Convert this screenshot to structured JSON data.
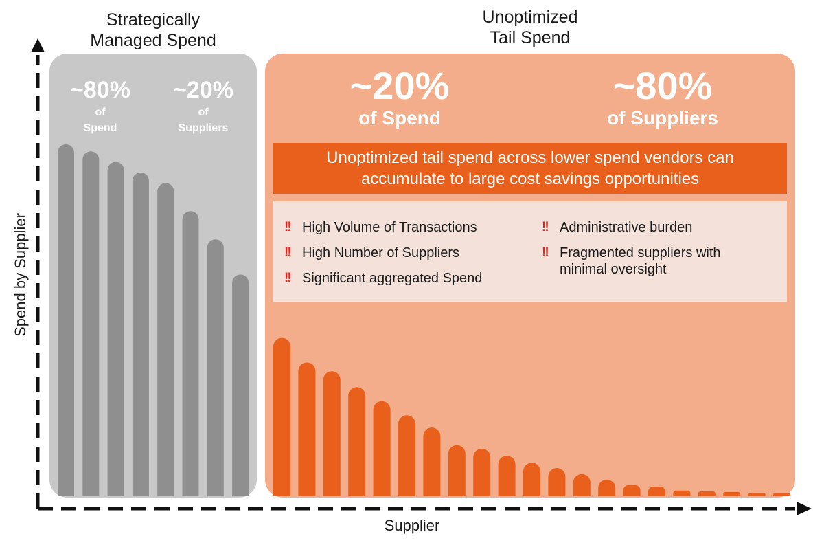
{
  "left_section": {
    "title": "Strategically\nManaged Spend",
    "stats": [
      {
        "pct": "~80%",
        "label": "of\nSpend"
      },
      {
        "pct": "~20%",
        "label": "of\nSuppliers"
      }
    ]
  },
  "right_section": {
    "title": "Unoptimized\nTail Spend",
    "stats": [
      {
        "pct": "~20%",
        "label": "of Spend"
      },
      {
        "pct": "~80%",
        "label": "of Suppliers"
      }
    ],
    "banner": "Unoptimized tail spend across lower spend vendors can\naccumulate to large cost savings opportunities",
    "issues_left": [
      "High Volume of Transactions",
      "High Number of Suppliers",
      "Significant aggregated Spend"
    ],
    "issues_right": [
      "Administrative burden",
      "Fragmented suppliers with\nminimal oversight"
    ],
    "issue_marker": "!!"
  },
  "chart_data": {
    "type": "bar",
    "xlabel": "Supplier",
    "ylabel": "Spend by Supplier",
    "ylim": [
      0,
      100
    ],
    "series": [
      {
        "values": [
          100,
          98,
          95,
          92,
          89,
          81,
          73,
          63
        ],
        "color": "#8f8f8f"
      },
      {
        "values": [
          45,
          38,
          35.5,
          31,
          27,
          23,
          19.5,
          14.5,
          13.5,
          11.5,
          9.5,
          8,
          6.3,
          4.7,
          3.2,
          2.7,
          1.6,
          1.4,
          1.2,
          0.9,
          0.8
        ],
        "color": "#e8601c"
      }
    ]
  },
  "colors": {
    "strategic_panel": "#c8c8c8",
    "tail_panel": "#f3ad8a",
    "strategic_bars": "#8f8f8f",
    "tail_bars": "#e8601c",
    "issue_marker": "#e8231c"
  }
}
